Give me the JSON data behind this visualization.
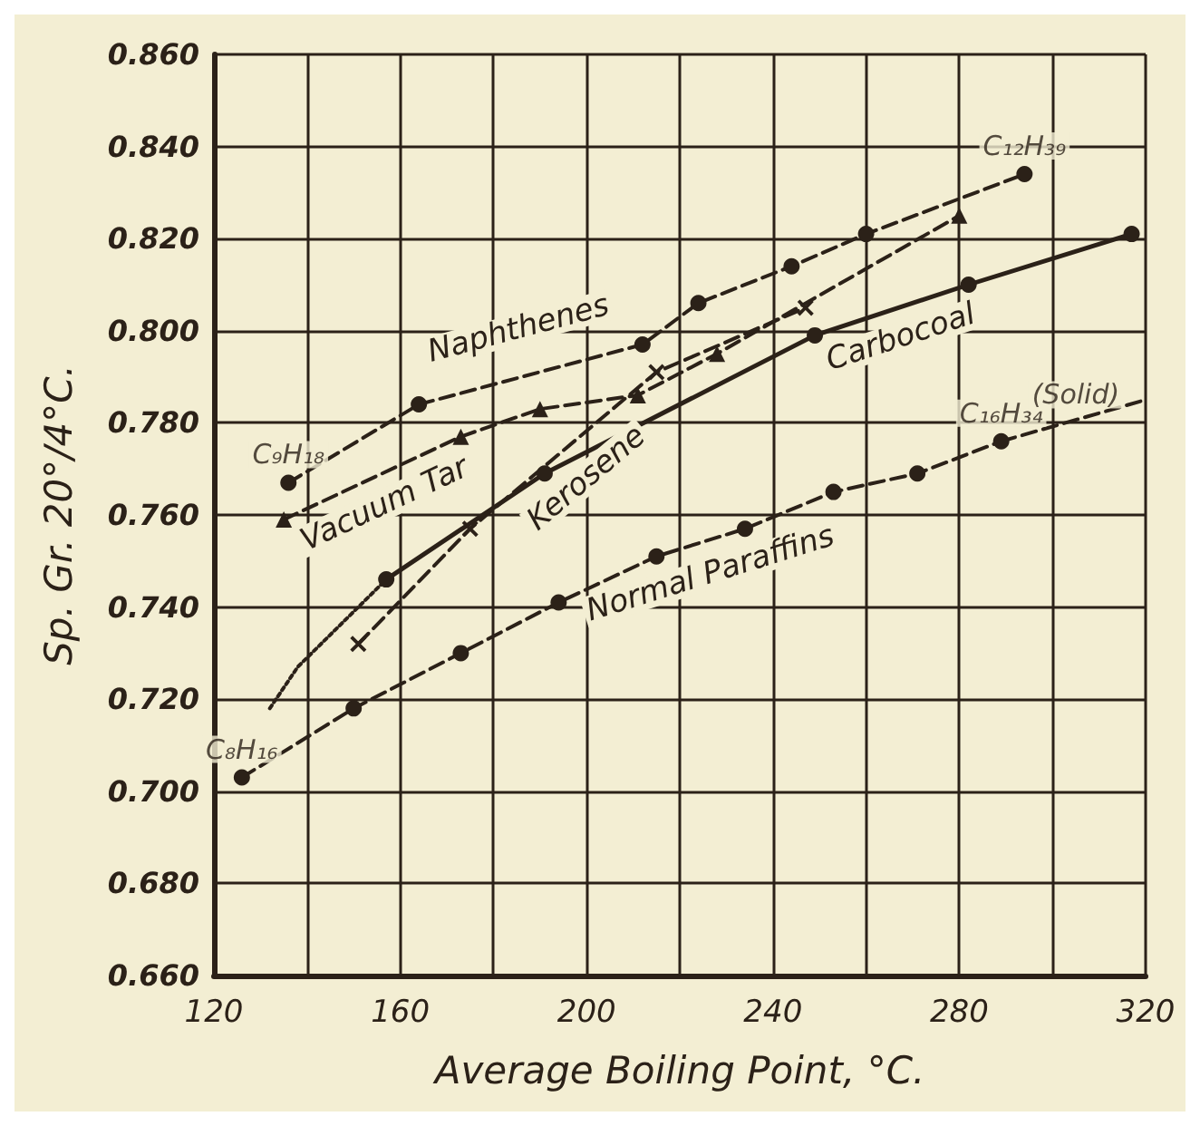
{
  "chart_data": {
    "type": "line",
    "xlabel": "Average Boiling Point, °C.",
    "ylabel": "Sp. Gr. 20°/4°C.",
    "xlim": [
      120,
      320
    ],
    "ylim": [
      0.66,
      0.86
    ],
    "xticks": [
      120,
      {
        "value": 140,
        "label": null
      },
      160,
      {
        "value": 180,
        "label": null
      },
      200,
      {
        "value": 220,
        "label": null
      },
      240,
      {
        "value": 260,
        "label": null
      },
      280,
      {
        "value": 300,
        "label": null
      },
      320
    ],
    "yticks": [
      {
        "value": 0.66,
        "label": "0.660"
      },
      {
        "value": 0.68,
        "label": "0.680"
      },
      {
        "value": 0.7,
        "label": "0.700"
      },
      {
        "value": 0.72,
        "label": "0.720"
      },
      {
        "value": 0.74,
        "label": "0.740"
      },
      {
        "value": 0.76,
        "label": "0.760"
      },
      {
        "value": 0.78,
        "label": "0.780"
      },
      {
        "value": 0.8,
        "label": "0.800"
      },
      {
        "value": 0.82,
        "label": "0.820"
      },
      {
        "value": 0.84,
        "label": "0.840"
      },
      {
        "value": 0.86,
        "label": "0.860"
      }
    ],
    "grid": true,
    "series": [
      {
        "name": "Naphthenes",
        "color": "#2b2118",
        "marker": "circle",
        "line_style": "dashed",
        "x": [
          136,
          164,
          212,
          224,
          244,
          260,
          294
        ],
        "values": [
          0.767,
          0.784,
          0.797,
          0.806,
          0.814,
          0.821,
          0.834
        ]
      },
      {
        "name": "Vacuum Tar",
        "color": "#2b2118",
        "marker": "triangle",
        "line_style": "dashed",
        "x": [
          135,
          173,
          190,
          211,
          228,
          280
        ],
        "values": [
          0.759,
          0.777,
          0.783,
          0.786,
          0.795,
          0.825
        ]
      },
      {
        "name": "Kerosene",
        "color": "#2b2118",
        "marker": "cross",
        "line_style": "dashed",
        "x": [
          151,
          175,
          215,
          247
        ],
        "values": [
          0.732,
          0.757,
          0.791,
          0.805
        ]
      },
      {
        "name": "Carbocoal",
        "color": "#2b2118",
        "marker": "circle",
        "line_style": "solid",
        "x": [
          157,
          191,
          249,
          282,
          317
        ],
        "values": [
          0.746,
          0.769,
          0.799,
          0.81,
          0.821
        ]
      },
      {
        "color": "#2b2118",
        "marker": "none",
        "line_style": "dotted",
        "x": [
          132,
          138,
          157
        ],
        "values": [
          0.718,
          0.727,
          0.746
        ]
      },
      {
        "name": "Normal Paraffins",
        "color": "#2b2118",
        "marker": "circle",
        "line_style": "dashed",
        "x": [
          126,
          150,
          173,
          194,
          215,
          234,
          253,
          271,
          289
        ],
        "values": [
          0.703,
          0.718,
          0.73,
          0.741,
          0.751,
          0.757,
          0.765,
          0.769,
          0.776
        ]
      },
      {
        "color": "#2b2118",
        "marker": "none",
        "line_style": "dashed",
        "x": [
          289,
          320
        ],
        "values": [
          0.776,
          0.785
        ]
      }
    ],
    "annotations": [
      {
        "text": "C₈H₁₆",
        "x": 126,
        "y": 0.703
      },
      {
        "text": "C₉H₁₈",
        "x": 136,
        "y": 0.767
      },
      {
        "text": "C₁₂H₃₉",
        "x": 294,
        "y": 0.834
      },
      {
        "text": "C₁₆H₃₄",
        "x": 289,
        "y": 0.776
      },
      {
        "text": "(Solid)",
        "x": 305,
        "y": 0.78
      }
    ]
  }
}
